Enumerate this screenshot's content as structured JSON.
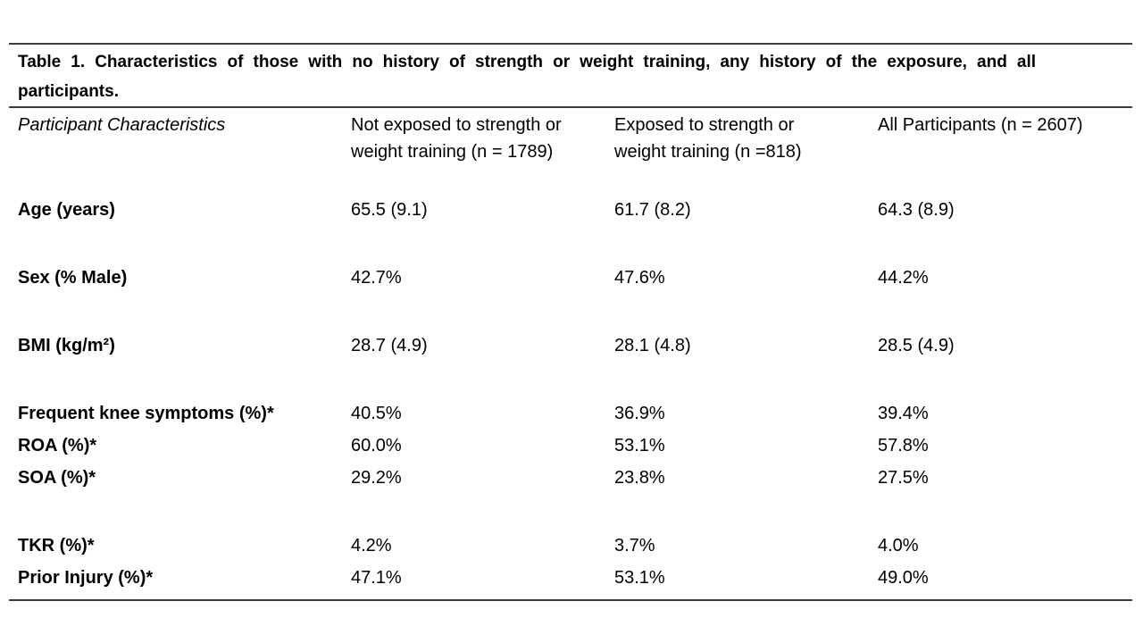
{
  "colors": {
    "background": "#ffffff",
    "text": "#000000",
    "rule": "#3d3d3d"
  },
  "table": {
    "title_full": "Table 1. Characteristics of those with no history of strength or weight training, any history of the exposure, and all participants.",
    "title_lines": [
      "Table 1. Characteristics of those with no history of strength or weight training, any history of the exposure, and all",
      "participants."
    ],
    "header": {
      "col1": "Participant Characteristics",
      "col2": "Not exposed to strength or weight training (n = 1789)",
      "col3": "Exposed to strength or weight training (n =818)",
      "col4": "All Participants (n = 2607)"
    },
    "rows": [
      {
        "label": "Age (years)",
        "values": [
          "65.5 (9.1)",
          "61.7 (8.2)",
          "64.3 (8.9)"
        ]
      },
      {
        "label": "Sex (% Male)",
        "values": [
          "42.7%",
          "47.6%",
          "44.2%"
        ]
      },
      {
        "label": "BMI (kg/m²)",
        "values": [
          "28.7 (4.9)",
          "28.1 (4.8)",
          "28.5 (4.9)"
        ]
      },
      {
        "label": "Frequent knee symptoms (%)*",
        "values": [
          "40.5%",
          "36.9%",
          "39.4%"
        ]
      },
      {
        "label": "ROA (%)*",
        "values": [
          "60.0%",
          "53.1%",
          "57.8%"
        ]
      },
      {
        "label": "SOA (%)*",
        "values": [
          "29.2%",
          "23.8%",
          "27.5%"
        ]
      },
      {
        "label": "TKR (%)*",
        "values": [
          "4.2%",
          "3.7%",
          "4.0%"
        ]
      },
      {
        "label": "Prior Injury (%)*",
        "values": [
          "47.1%",
          "53.1%",
          "49.0%"
        ]
      }
    ]
  }
}
